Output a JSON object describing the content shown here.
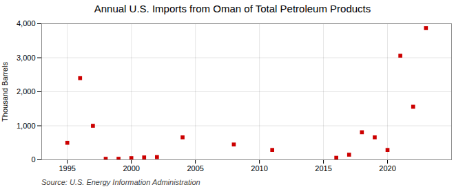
{
  "chart_data": {
    "type": "scatter",
    "title": "Annual U.S. Imports from Oman of Total Petroleum Products",
    "ylabel": "Thousand Barrels",
    "source": "Source: U.S. Energy Information Administration",
    "x": [
      1995,
      1996,
      1997,
      1998,
      1999,
      2000,
      2001,
      2002,
      2004,
      2008,
      2011,
      2016,
      2017,
      2018,
      2019,
      2020,
      2021,
      2022,
      2023
    ],
    "values": [
      500,
      2400,
      1000,
      30,
      30,
      50,
      70,
      80,
      660,
      450,
      290,
      60,
      150,
      810,
      660,
      290,
      3060,
      1560,
      3870
    ],
    "color": "#cc0000",
    "marker": "square",
    "xlim": [
      1993,
      2025
    ],
    "ylim": [
      0,
      4000
    ],
    "xticks": [
      1995,
      2000,
      2005,
      2010,
      2015,
      2020
    ],
    "yticks": [
      0,
      {
        "value": 1000,
        "label": "1,000"
      },
      {
        "value": 2000,
        "label": "2,000"
      },
      {
        "value": 3000,
        "label": "3,000"
      },
      {
        "value": 4000,
        "label": "4,000"
      }
    ],
    "grid": true
  }
}
